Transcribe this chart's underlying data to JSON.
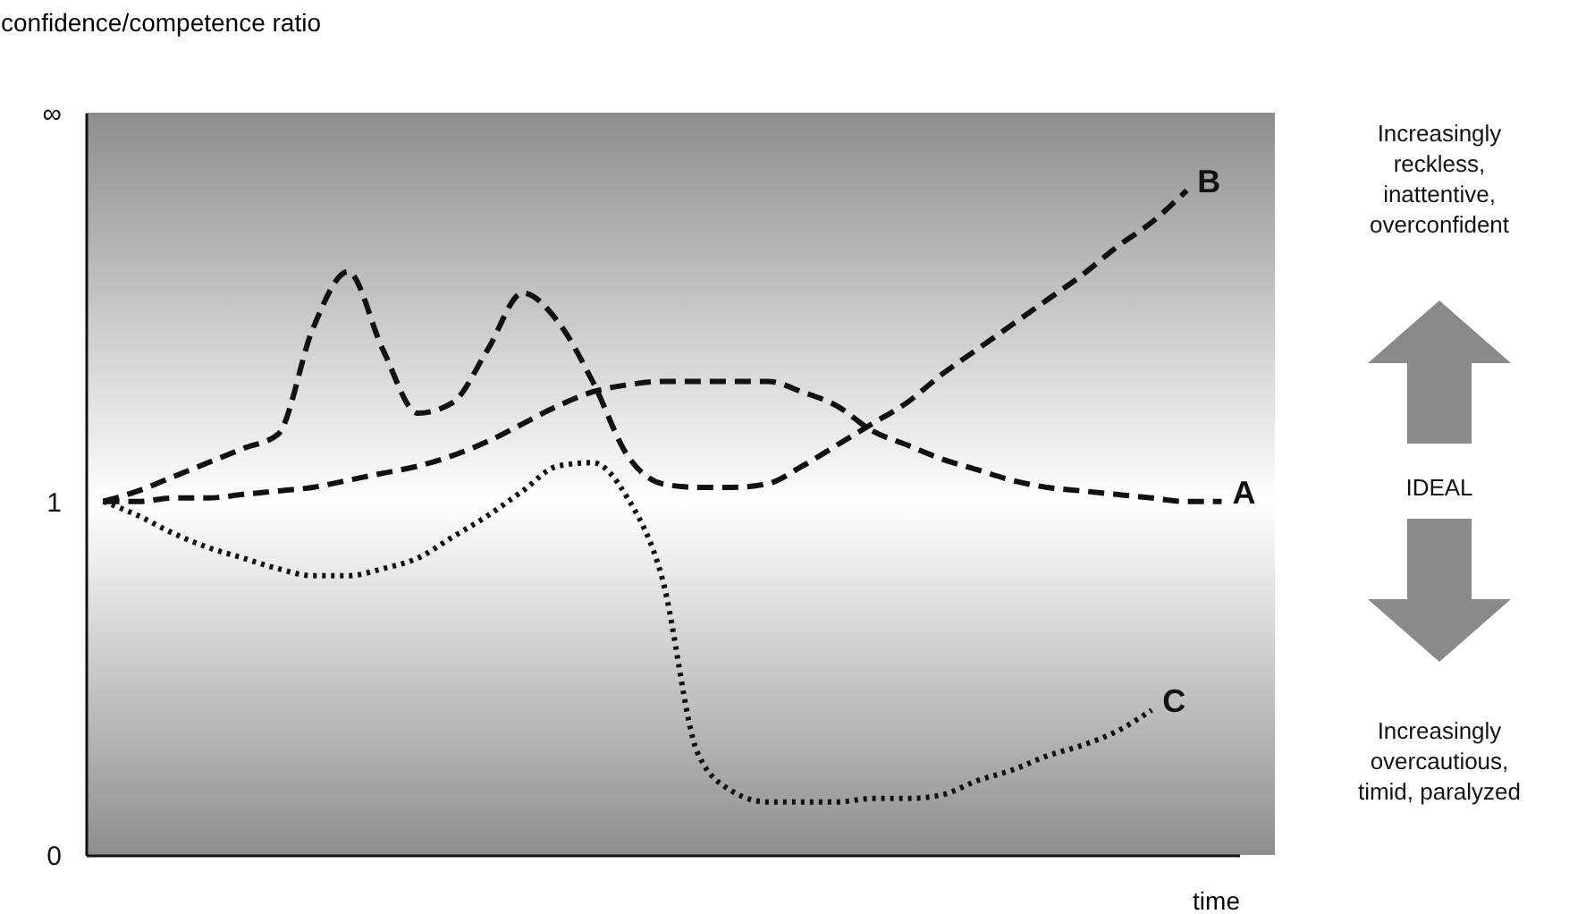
{
  "chart_data": {
    "type": "line",
    "xlabel": "time",
    "ylabel": "confidence/competence ratio",
    "categories": [
      null,
      null,
      null,
      null,
      null,
      null,
      null,
      null,
      null,
      null,
      null,
      null,
      null,
      null,
      null,
      null,
      null,
      null,
      null,
      null,
      null,
      null,
      null,
      null,
      null,
      null,
      null,
      null,
      null,
      null,
      null,
      null,
      null
    ],
    "series": [
      {
        "name": "A",
        "color": "#111111",
        "line_style": "dashed",
        "values": [
          1.0,
          1.0,
          1.01,
          1.01,
          1.02,
          1.03,
          1.04,
          1.06,
          1.08,
          1.1,
          1.13,
          1.17,
          1.22,
          1.27,
          1.31,
          1.33,
          1.34,
          1.34,
          1.34,
          1.34,
          1.31,
          1.27,
          1.2,
          1.16,
          1.12,
          1.09,
          1.06,
          1.04,
          1.03,
          1.02,
          1.01,
          1.0,
          1.0
        ]
      },
      {
        "name": "B",
        "color": "#111111",
        "line_style": "dashed",
        "values": [
          1.0,
          1.03,
          1.07,
          1.11,
          1.15,
          1.19,
          1.49,
          1.65,
          1.43,
          1.25,
          1.28,
          1.43,
          1.59,
          1.51,
          1.34,
          1.13,
          1.05,
          1.04,
          1.04,
          1.05,
          1.1,
          1.16,
          1.22,
          1.28,
          1.36,
          1.43,
          1.5,
          1.57,
          1.64,
          1.72,
          1.79,
          1.88,
          null
        ]
      },
      {
        "name": "C",
        "color": "#111111",
        "line_style": "dotted",
        "values": [
          1.0,
          0.96,
          0.91,
          0.87,
          0.84,
          0.81,
          0.79,
          0.79,
          0.81,
          0.84,
          0.9,
          0.96,
          1.03,
          1.1,
          1.11,
          1.01,
          0.78,
          0.29,
          0.18,
          0.15,
          0.15,
          0.15,
          0.16,
          0.16,
          0.17,
          0.21,
          0.24,
          0.28,
          0.31,
          0.35,
          0.41,
          null,
          null
        ]
      }
    ],
    "ylim": [
      0,
      2.1
    ],
    "yticks": [
      0,
      1,
      {
        "value": 2.1,
        "label": "∞"
      }
    ],
    "tick_labels": "y",
    "grid": false,
    "annotations": [
      "Increasingly reckless, inattentive, overconfident",
      "IDEAL",
      "Increasingly overcautious, timid, paralyzed"
    ]
  }
}
